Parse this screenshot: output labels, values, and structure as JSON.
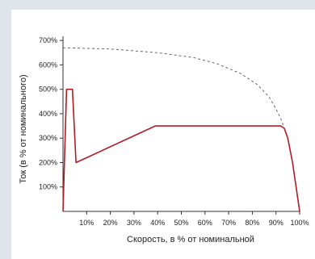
{
  "chart_data": {
    "type": "line",
    "xlabel": "Скорость, в % от номинальной",
    "ylabel": "Ток (в % от номинального)",
    "xlim": [
      0,
      100
    ],
    "ylim": [
      0,
      750
    ],
    "x_ticks": [
      10,
      20,
      30,
      40,
      50,
      60,
      70,
      80,
      90,
      100
    ],
    "x_tick_labels": [
      "10%",
      "20%",
      "30%",
      "40%",
      "50%",
      "60%",
      "70%",
      "80%",
      "90%",
      "100%"
    ],
    "y_ticks": [
      100,
      200,
      300,
      400,
      500,
      600,
      700
    ],
    "y_tick_labels": [
      "100%",
      "200%",
      "300%",
      "400%",
      "500%",
      "600%",
      "700%"
    ],
    "grid": false,
    "colors": {
      "solid": "#b01c24",
      "dashed": "#555555",
      "axis": "#333333"
    },
    "series": [
      {
        "style": "solid",
        "points": [
          [
            0,
            0
          ],
          [
            1.5,
            500
          ],
          [
            4,
            500
          ],
          [
            5.5,
            200
          ],
          [
            39,
            350
          ],
          [
            92,
            350
          ],
          [
            93.5,
            340
          ],
          [
            95,
            300
          ],
          [
            97,
            200
          ],
          [
            98.5,
            100
          ],
          [
            100,
            0
          ]
        ]
      },
      {
        "style": "dashed",
        "points": [
          [
            0,
            670
          ],
          [
            20,
            665
          ],
          [
            40,
            650
          ],
          [
            55,
            630
          ],
          [
            65,
            605
          ],
          [
            75,
            565
          ],
          [
            82,
            520
          ],
          [
            87,
            470
          ],
          [
            90,
            420
          ],
          [
            92,
            380
          ],
          [
            93.5,
            340
          ]
        ]
      }
    ]
  }
}
